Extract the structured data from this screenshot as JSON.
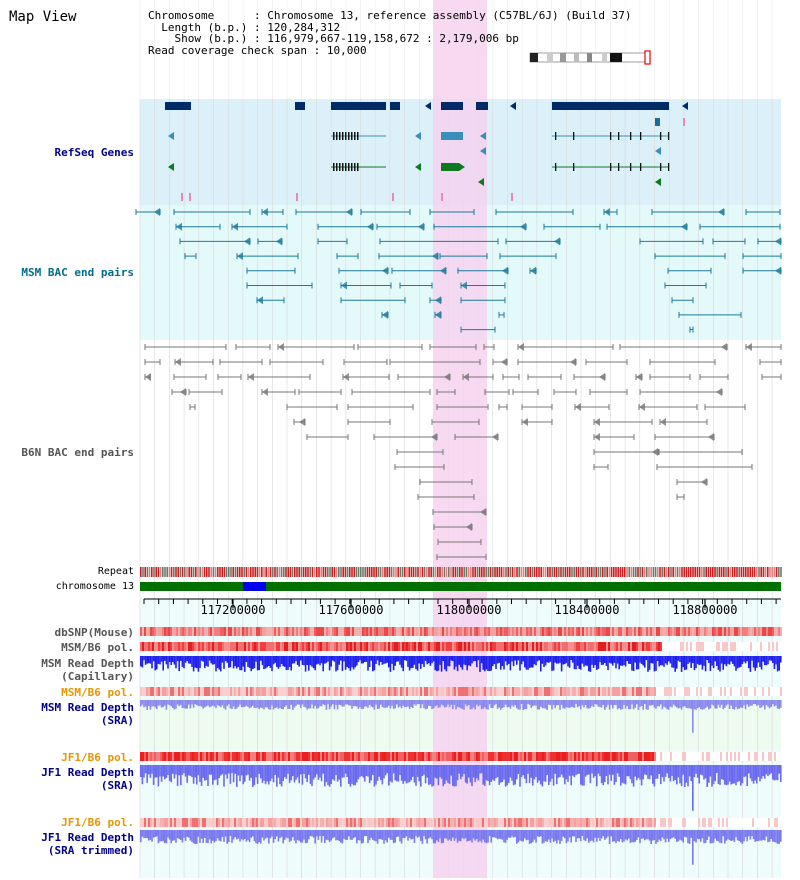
{
  "title": "Map View",
  "info": {
    "chromosome_key": "Chromosome",
    "chromosome_val": "Chromosome 13, reference assembly (C57BL/6J) (Build 37)",
    "length_key": "Length (b.p.)",
    "length_val": "120,284,312",
    "show_key": "Show (b.p.)",
    "show_val": "116,979,667-119,158,672 : 2,179,006 bp",
    "coverage_key": "Read coverage check span",
    "coverage_val": "10,000"
  },
  "tracks": {
    "refseq": "RefSeq Genes",
    "msm_bac": "MSM BAC end pairs",
    "b6n_bac": "B6N BAC end pairs",
    "repeat": "Repeat",
    "chromosome": "chromosome 13",
    "dbsnp": "dbSNP(Mouse)",
    "msm_b6_pol1": "MSM/B6 pol.",
    "msm_depth_cap_1": "MSM Read Depth",
    "msm_depth_cap_2": "(Capillary)",
    "msm_b6_pol2": "MSM/B6 pol.",
    "msm_depth_sra_1": "MSM Read Depth",
    "msm_depth_sra_2": "(SRA)",
    "jf1_b6_pol1": "JF1/B6 pol.",
    "jf1_depth_sra_1": "JF1 Read Depth",
    "jf1_depth_sra_2": "(SRA)",
    "jf1_b6_pol2": "JF1/B6 pol.",
    "jf1_depth_trim_1": "JF1 Read Depth",
    "jf1_depth_trim_2": "(SRA trimmed)"
  },
  "axis": {
    "ticks": [
      "117200000",
      "117600000",
      "118000000",
      "118400000",
      "118800000"
    ]
  },
  "colors": {
    "refseq_bg": "#dcf0fa",
    "msm_bg": "#e4fafa",
    "highlight": "#f6d2f0",
    "gene_dark": "#002b66",
    "gene_teal": "#3a8fb8",
    "gene_green": "#0c7a1e",
    "msm_line": "#1b7b99",
    "b6n_line": "#777777",
    "chromosome": "#007000",
    "chromosome_blue": "#0000ee",
    "repeat_red": "#cc2020",
    "depth_blue": "#2222ee",
    "depth_light": "#7777ee",
    "label_blue": "#00008b",
    "label_teal": "#006b8f",
    "label_orange": "#e89600"
  }
}
